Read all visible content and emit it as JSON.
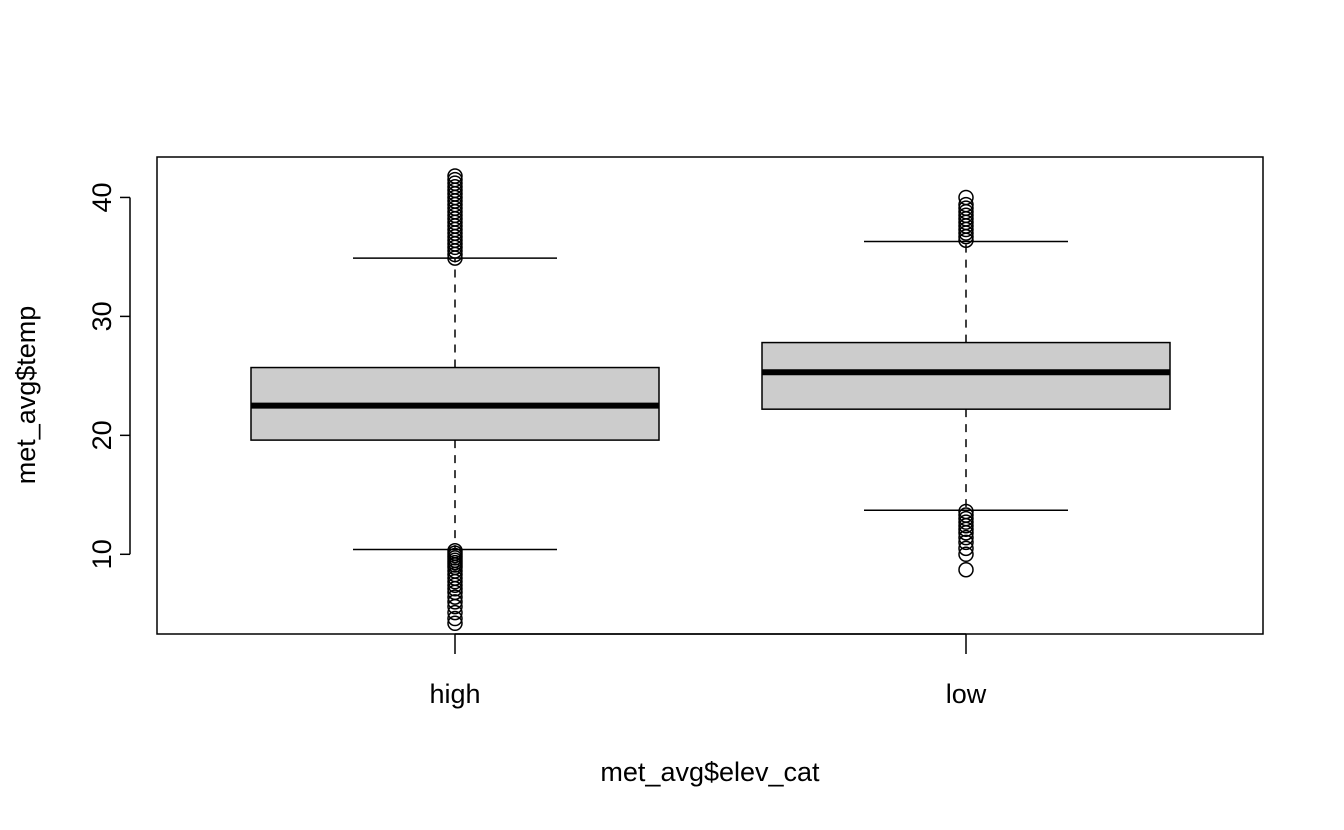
{
  "chart_data": {
    "type": "boxplot",
    "title": "",
    "xlabel": "met_avg$elev_cat",
    "ylabel": "met_avg$temp",
    "ylim": [
      3.3,
      43.4
    ],
    "y_ticks": [
      10,
      20,
      30,
      40
    ],
    "y_tick_labels": [
      "10",
      "20",
      "30",
      "40"
    ],
    "categories": [
      "high",
      "low"
    ],
    "box_fill": "#cccccc",
    "line_color": "#000000",
    "grid": false,
    "boxes": [
      {
        "category": "high",
        "whisker_low": 10.4,
        "q1": 19.6,
        "median": 22.5,
        "q3": 25.7,
        "whisker_high": 34.9,
        "outliers": [
          4.2,
          4.6,
          5.1,
          5.6,
          6.0,
          6.4,
          6.8,
          7.1,
          7.4,
          7.7,
          8.0,
          8.3,
          8.6,
          8.9,
          9.1,
          9.3,
          9.5,
          9.7,
          9.9,
          10.1,
          10.3,
          34.9,
          35.2,
          35.5,
          35.8,
          36.1,
          36.4,
          36.7,
          37.0,
          37.3,
          37.6,
          37.9,
          38.2,
          38.5,
          38.8,
          39.1,
          39.4,
          39.7,
          40.0,
          40.3,
          40.6,
          40.9,
          41.2,
          41.5,
          41.8
        ]
      },
      {
        "category": "low",
        "whisker_low": 13.7,
        "q1": 22.2,
        "median": 25.3,
        "q3": 27.8,
        "whisker_high": 36.3,
        "outliers": [
          8.7,
          10.0,
          10.5,
          11.0,
          11.4,
          11.8,
          12.1,
          12.4,
          12.7,
          13.0,
          13.3,
          13.6,
          36.4,
          36.7,
          37.0,
          37.3,
          37.6,
          37.9,
          38.2,
          38.5,
          38.8,
          39.1,
          39.4,
          40.0
        ]
      }
    ]
  }
}
